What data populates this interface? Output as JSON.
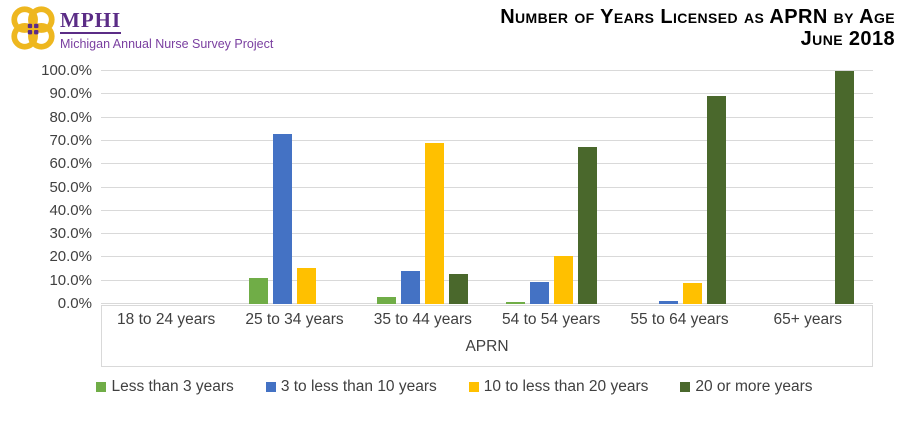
{
  "header": {
    "logo_text": "MPHI",
    "tagline": "Michigan Annual Nurse Survey Project",
    "logo_gold": "#eeb71f",
    "logo_purple": "#5b2c86"
  },
  "title": {
    "line1": "Number of Years Licensed as APRN by Age",
    "line2": "June 2018"
  },
  "chart_data": {
    "type": "bar",
    "title": "Number of Years Licensed as APRN by Age, June 2018",
    "xlabel": "APRN",
    "ylabel": "",
    "ylim": [
      0,
      100
    ],
    "ytick_step": 10,
    "ytick_labels": [
      "0.0%",
      "10.0%",
      "20.0%",
      "30.0%",
      "40.0%",
      "50.0%",
      "60.0%",
      "70.0%",
      "80.0%",
      "90.0%",
      "100.0%"
    ],
    "grid": true,
    "legend_position": "bottom",
    "categories": [
      "18 to 24 years",
      "25 to 34 years",
      "35 to 44 years",
      "54 to 54 years",
      "55 to 64 years",
      "65+ years"
    ],
    "series": [
      {
        "name": "Less than 3 years",
        "color": "#70ad47",
        "values": [
          0,
          11.2,
          2.8,
          1.0,
          0,
          0
        ]
      },
      {
        "name": "3 to less than 10 years",
        "color": "#4472c4",
        "values": [
          0,
          73.0,
          14.2,
          9.4,
          1.3,
          0
        ]
      },
      {
        "name": "10 to less than 20 years",
        "color": "#ffc000",
        "values": [
          0,
          15.5,
          69.1,
          20.6,
          9.0,
          0
        ]
      },
      {
        "name": "20 or more years",
        "color": "#4a682c",
        "values": [
          0,
          0,
          12.9,
          67.4,
          89.3,
          100.0
        ]
      }
    ]
  }
}
